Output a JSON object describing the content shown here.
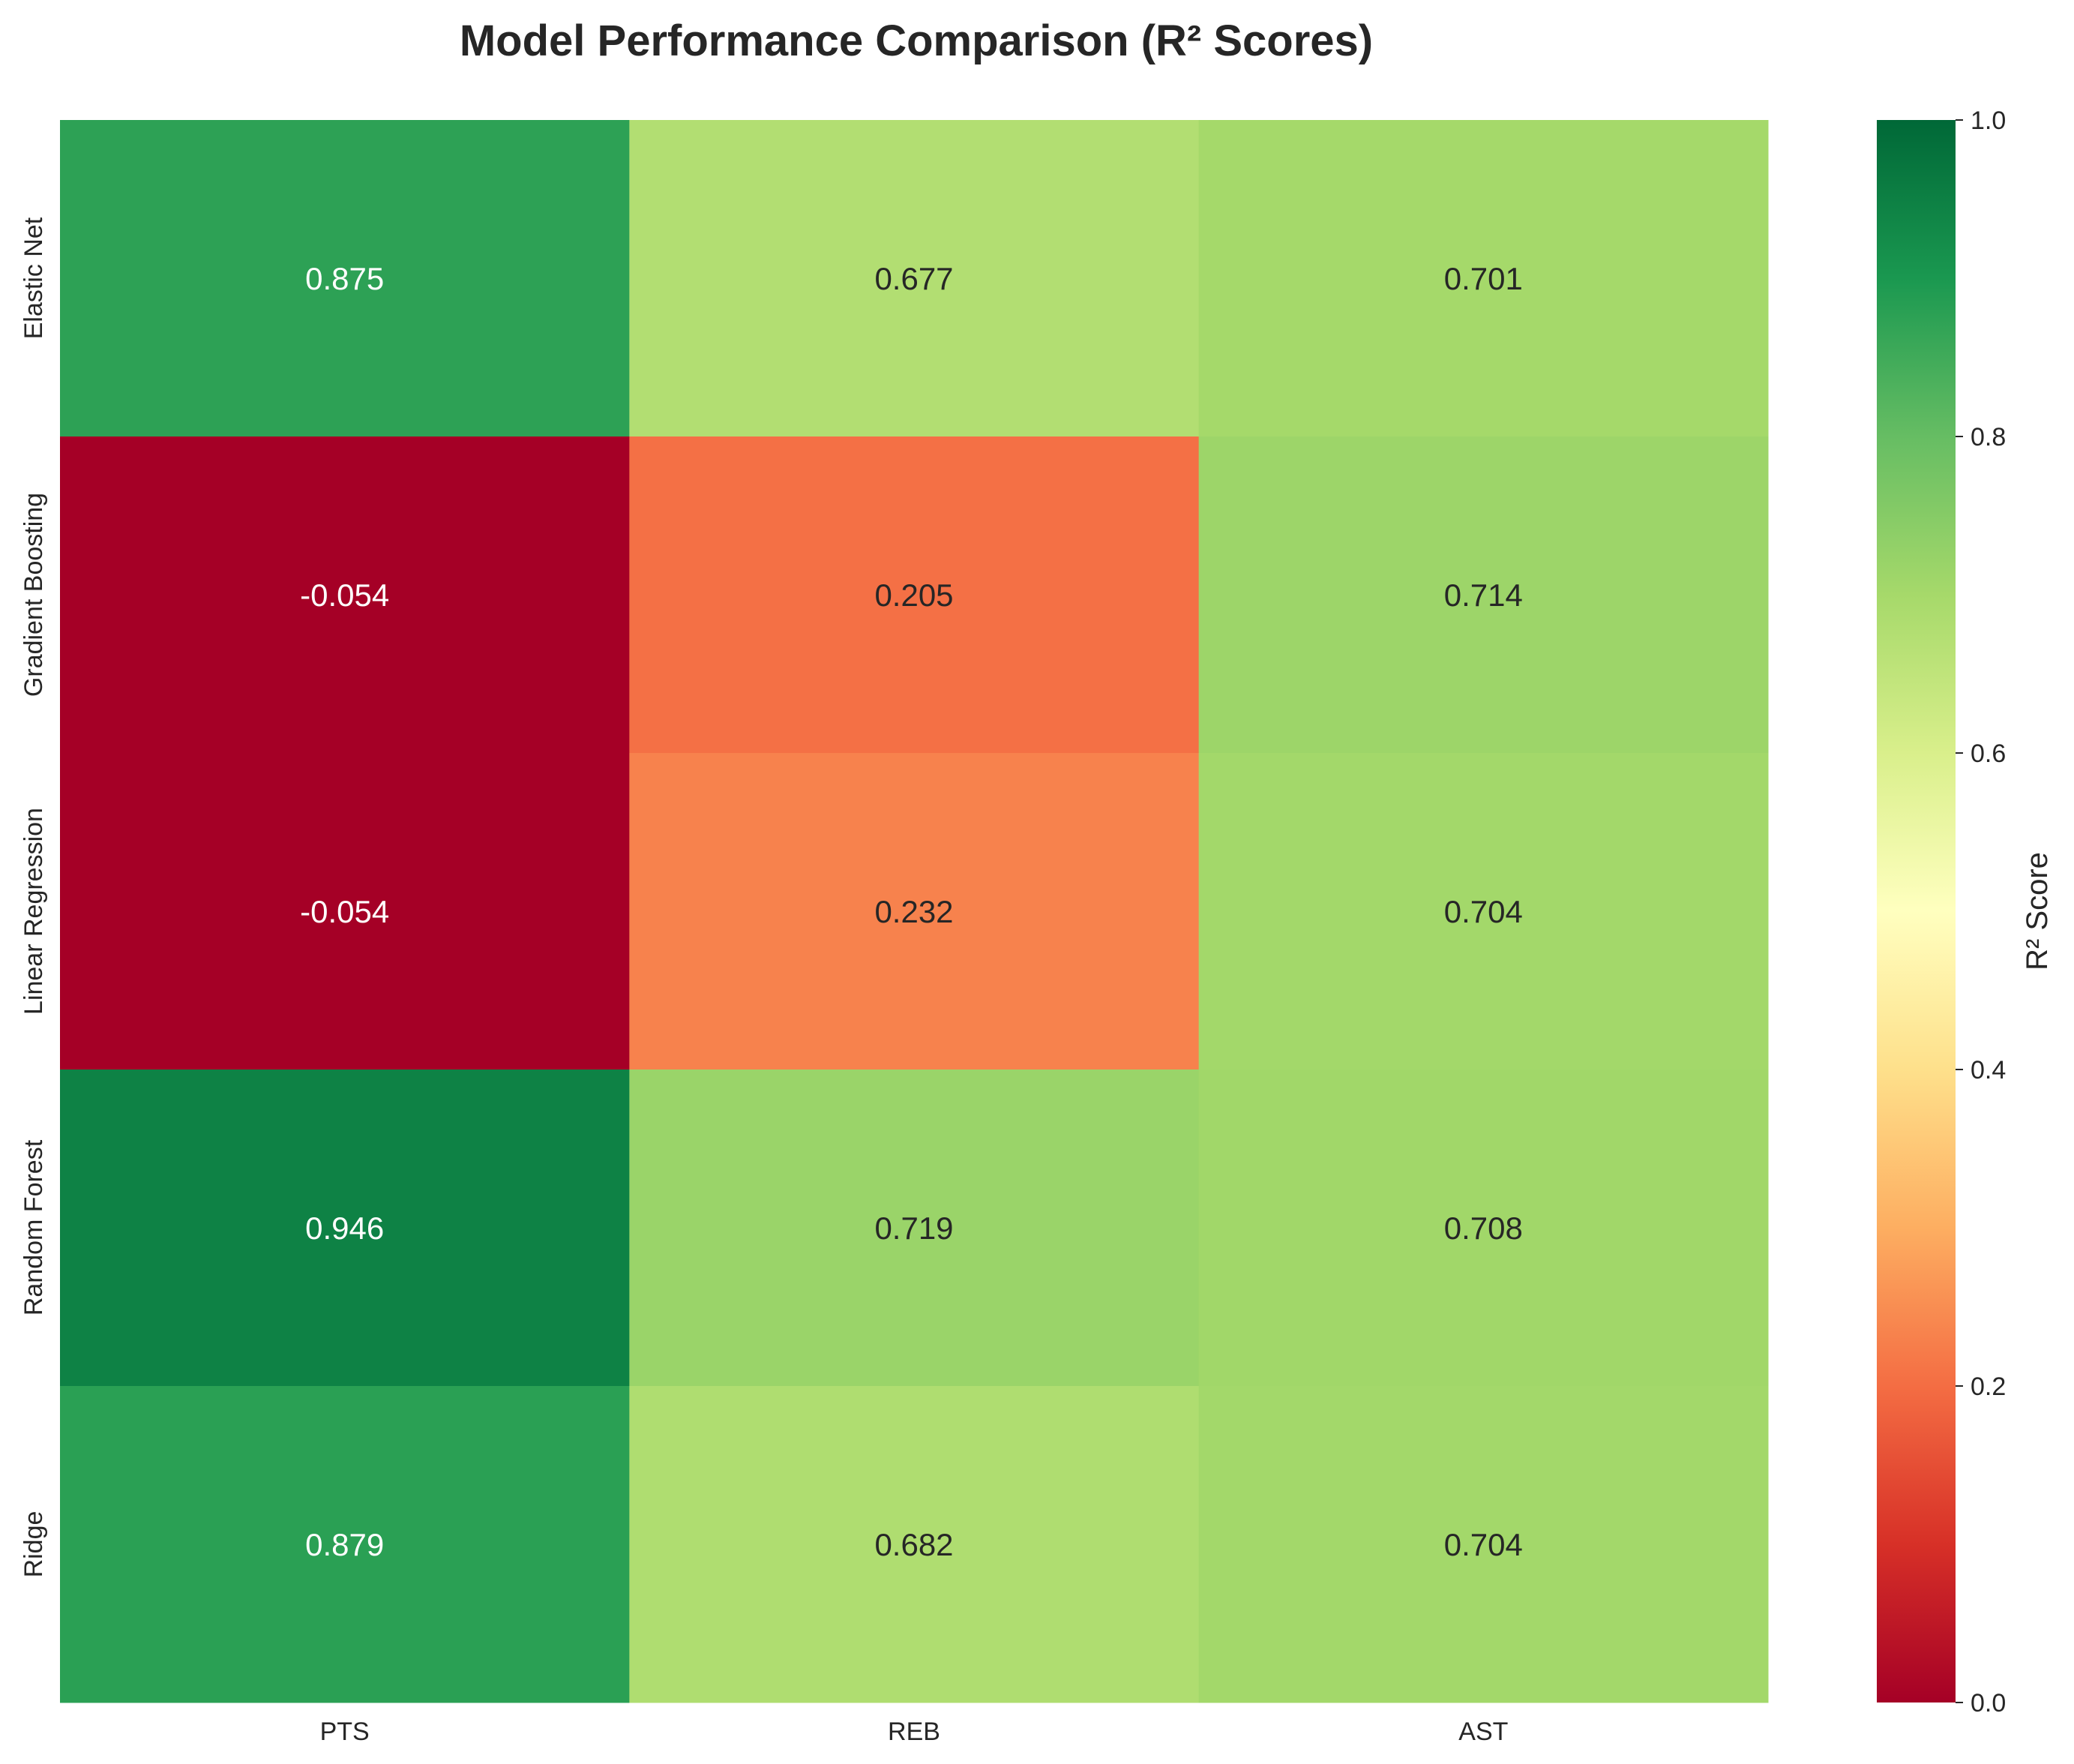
{
  "chart_data": {
    "type": "heatmap",
    "title": "Model Performance Comparison (R² Scores)",
    "xlabel": "",
    "ylabel": "",
    "rows": [
      "Elastic Net",
      "Gradient Boosting",
      "Linear Regression",
      "Random Forest",
      "Ridge"
    ],
    "columns": [
      "PTS",
      "REB",
      "AST"
    ],
    "values": [
      [
        0.875,
        0.677,
        0.701
      ],
      [
        -0.054,
        0.205,
        0.714
      ],
      [
        -0.054,
        0.232,
        0.704
      ],
      [
        0.946,
        0.719,
        0.708
      ],
      [
        0.879,
        0.682,
        0.704
      ]
    ],
    "value_format": "0.000",
    "colormap": "RdYlGn",
    "vmin": 0.0,
    "vmax": 1.0,
    "colorbar": {
      "label": "R² Score",
      "ticks": [
        0.0,
        0.2,
        0.4,
        0.6,
        0.8,
        1.0
      ],
      "tick_labels": [
        "0.0",
        "0.2",
        "0.4",
        "0.6",
        "0.8",
        "1.0"
      ]
    },
    "grid": false
  }
}
